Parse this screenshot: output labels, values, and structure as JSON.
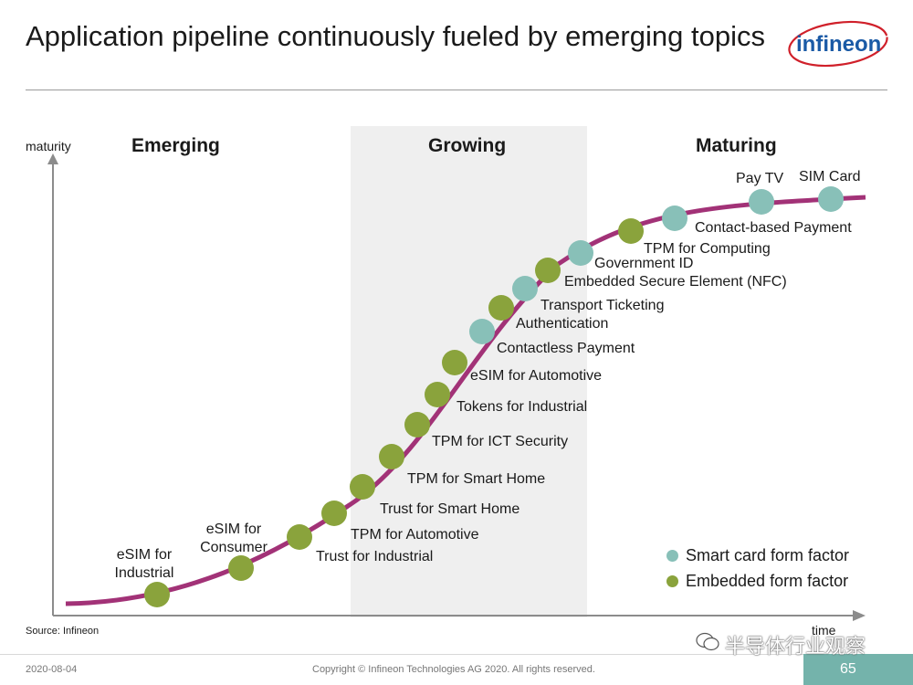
{
  "title": "Application pipeline continuously fueled by emerging topics",
  "logo_text": "infineon",
  "stages": {
    "emerging": "Emerging",
    "growing": "Growing",
    "maturing": "Maturing"
  },
  "axes": {
    "y": "maturity",
    "x": "time"
  },
  "colors": {
    "curve": "#a23277",
    "smart_card": "#88c0b8",
    "embedded": "#8aa33c",
    "band": "#efefef",
    "axis": "#8c8c8c",
    "accent": "#74b3ab"
  },
  "applications": [
    {
      "label": "eSIM for\nIndustrial",
      "type": "embedded"
    },
    {
      "label": "eSIM for\nConsumer",
      "type": "embedded"
    },
    {
      "label": "Trust for Industrial",
      "type": "embedded"
    },
    {
      "label": "TPM for Automotive",
      "type": "embedded"
    },
    {
      "label": "Trust for Smart Home",
      "type": "embedded"
    },
    {
      "label": "TPM for Smart Home",
      "type": "embedded"
    },
    {
      "label": "TPM for ICT Security",
      "type": "embedded"
    },
    {
      "label": "Tokens for Industrial",
      "type": "embedded"
    },
    {
      "label": "eSIM for Automotive",
      "type": "embedded"
    },
    {
      "label": "Contactless Payment",
      "type": "smart_card"
    },
    {
      "label": "Authentication",
      "type": "embedded"
    },
    {
      "label": "Transport Ticketing",
      "type": "smart_card"
    },
    {
      "label": "Embedded Secure Element (NFC)",
      "type": "embedded"
    },
    {
      "label": "Government ID",
      "type": "smart_card"
    },
    {
      "label": "TPM for Computing",
      "type": "embedded"
    },
    {
      "label": "Contact-based Payment",
      "type": "smart_card"
    },
    {
      "label": "Pay TV",
      "type": "smart_card"
    },
    {
      "label": "SIM Card",
      "type": "smart_card"
    }
  ],
  "legend": {
    "smart_card": "Smart card form factor",
    "embedded": "Embedded form factor"
  },
  "source": "Source: Infineon",
  "footer": {
    "date": "2020-08-04",
    "copyright": "Copyright © Infineon Technologies AG 2020. All rights reserved.",
    "page": "65"
  },
  "watermark": "半导体行业观察"
}
